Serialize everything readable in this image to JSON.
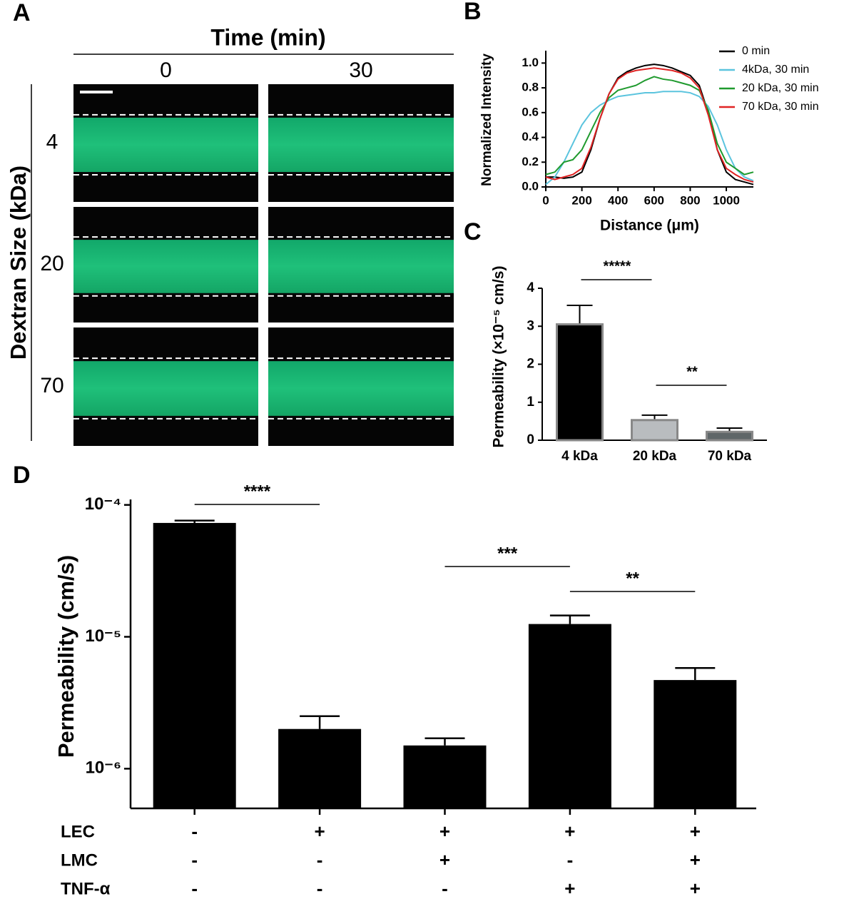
{
  "chart_data": [
    {
      "type": "image-grid",
      "panel": "A",
      "title": "Time (min)",
      "columns": [
        "0",
        "30"
      ],
      "row_axis_label": "Dextran Size (kDa)",
      "rows": [
        "4",
        "20",
        "70"
      ]
    },
    {
      "type": "line",
      "panel": "B",
      "x_label": "Distance (μm)",
      "y_label": "Normalized Intensity",
      "x": [
        0,
        50,
        100,
        150,
        200,
        250,
        300,
        350,
        400,
        450,
        500,
        550,
        600,
        650,
        700,
        750,
        800,
        850,
        900,
        950,
        1000,
        1050,
        1100,
        1150
      ],
      "xlim": [
        0,
        1150
      ],
      "xticks": [
        0,
        200,
        400,
        600,
        800,
        1000
      ],
      "ylim": [
        0,
        1.1
      ],
      "yticks": [
        {
          "value": 0,
          "label": "0.0"
        },
        0.2,
        0.4,
        0.6,
        0.8,
        {
          "value": 1,
          "label": "1.0"
        }
      ],
      "legend": "top-right",
      "series": [
        {
          "name": "0 min",
          "color": "#000000",
          "values": [
            0.08,
            0.08,
            0.07,
            0.08,
            0.12,
            0.3,
            0.55,
            0.75,
            0.88,
            0.93,
            0.96,
            0.98,
            0.99,
            0.98,
            0.96,
            0.93,
            0.9,
            0.82,
            0.6,
            0.3,
            0.12,
            0.06,
            0.04,
            0.02
          ]
        },
        {
          "name": "4kDa, 30 min",
          "color": "#5bc4de",
          "values": [
            0.02,
            0.08,
            0.2,
            0.35,
            0.5,
            0.6,
            0.66,
            0.7,
            0.73,
            0.74,
            0.75,
            0.76,
            0.76,
            0.77,
            0.77,
            0.77,
            0.76,
            0.73,
            0.65,
            0.5,
            0.3,
            0.15,
            0.08,
            0.05
          ]
        },
        {
          "name": "20 kDa, 30 min",
          "color": "#1f9a2e",
          "values": [
            0.1,
            0.12,
            0.2,
            0.22,
            0.3,
            0.45,
            0.6,
            0.72,
            0.78,
            0.8,
            0.82,
            0.86,
            0.89,
            0.87,
            0.86,
            0.84,
            0.82,
            0.78,
            0.62,
            0.35,
            0.2,
            0.15,
            0.1,
            0.12
          ]
        },
        {
          "name": "70 kDa, 30 min",
          "color": "#e02424",
          "values": [
            0.08,
            0.06,
            0.08,
            0.1,
            0.15,
            0.32,
            0.55,
            0.75,
            0.87,
            0.92,
            0.94,
            0.95,
            0.96,
            0.95,
            0.94,
            0.92,
            0.88,
            0.8,
            0.58,
            0.3,
            0.15,
            0.1,
            0.06,
            0.04
          ]
        }
      ]
    },
    {
      "type": "bar",
      "panel": "C",
      "y_label": "Permeability (×10⁻⁵ cm/s)",
      "categories": [
        "4 kDa",
        "20 kDa",
        "70 kDa"
      ],
      "values": [
        3.05,
        0.53,
        0.22
      ],
      "errors": [
        0.5,
        0.13,
        0.1
      ],
      "colors": [
        "#000000",
        "#b9bcbf",
        "#5f6668"
      ],
      "ylim": [
        0,
        4
      ],
      "yticks": [
        0,
        1,
        2,
        3,
        4
      ],
      "significance": [
        "*****",
        "**"
      ]
    },
    {
      "type": "log-bar",
      "panel": "D",
      "y_label": "Permeability  (cm/s)",
      "values": [
        7.3e-05,
        2e-06,
        1.5e-06,
        1.25e-05,
        4.7e-06
      ],
      "errors": [
        3e-06,
        5e-07,
        2e-07,
        2e-06,
        1.1e-06
      ],
      "color": "#000000",
      "log_scale": true,
      "ylim": [
        5e-07,
        0.00011
      ],
      "yticks": [
        {
          "value": 1e-06,
          "label": "10⁻⁶"
        },
        {
          "value": 1e-05,
          "label": "10⁻⁵"
        },
        {
          "value": 0.0001,
          "label": "10⁻⁴"
        }
      ],
      "conditions": [
        {
          "name": "LEC",
          "values": [
            "-",
            "+",
            "+",
            "+",
            "+"
          ]
        },
        {
          "name": "LMC",
          "values": [
            "-",
            "-",
            "+",
            "-",
            "+"
          ]
        },
        {
          "name": "TNF-α",
          "values": [
            "-",
            "-",
            "-",
            "+",
            "+"
          ]
        }
      ],
      "significance": [
        "****",
        null,
        "***",
        "**"
      ]
    }
  ]
}
